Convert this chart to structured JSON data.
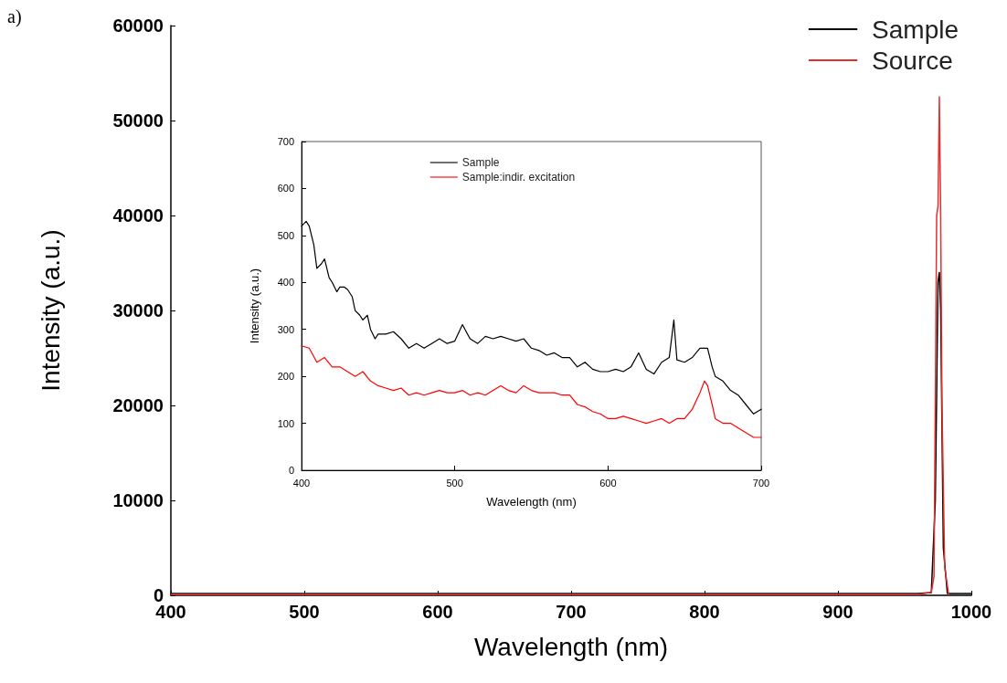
{
  "chart_data": [
    {
      "type": "line",
      "xlabel": "Wavelength (nm)",
      "ylabel": "Intensity (a.u.)",
      "annotations": [
        "a)"
      ],
      "xlim": [
        400,
        1000
      ],
      "xticks": [
        400,
        500,
        600,
        700,
        800,
        900,
        1000
      ],
      "ylim": [
        0,
        60000
      ],
      "yticks": [
        0,
        10000,
        20000,
        30000,
        40000,
        50000,
        60000
      ],
      "grid": false,
      "legend": "top right",
      "marker": "none",
      "line_style": "solid",
      "series": [
        {
          "name": "Sample",
          "color": "#000000",
          "x": [
            400,
            900,
            960,
            970,
            973,
            975,
            976,
            977,
            979,
            982,
            1000
          ],
          "values": [
            200,
            200,
            200,
            300,
            10000,
            33000,
            34000,
            30000,
            5000,
            200,
            200
          ]
        },
        {
          "name": "Source",
          "color": "#e03030",
          "x": [
            400,
            960,
            970,
            972,
            974,
            975,
            976,
            977,
            978,
            980,
            983
          ],
          "values": [
            100,
            100,
            300,
            2000,
            40000,
            41000,
            52500,
            40000,
            20000,
            3000,
            100
          ]
        }
      ]
    },
    {
      "type": "line",
      "xlabel": "Wavelength (nm)",
      "ylabel": "Intensity (a.u.)",
      "xlim": [
        400,
        700
      ],
      "xticks": [
        400,
        500,
        600,
        700
      ],
      "ylim": [
        0,
        700
      ],
      "yticks": [
        0,
        100,
        200,
        300,
        400,
        500,
        600,
        700
      ],
      "grid": false,
      "legend": "top",
      "marker": "none",
      "line_style": "solid",
      "series": [
        {
          "name": "Sample",
          "color": "#000000",
          "x": [
            400,
            403,
            405,
            408,
            410,
            413,
            415,
            418,
            420,
            423,
            425,
            428,
            430,
            433,
            435,
            438,
            440,
            443,
            445,
            448,
            450,
            455,
            460,
            465,
            470,
            475,
            480,
            485,
            490,
            495,
            500,
            505,
            510,
            515,
            520,
            525,
            530,
            535,
            540,
            545,
            550,
            555,
            560,
            565,
            570,
            575,
            580,
            585,
            590,
            595,
            600,
            605,
            610,
            615,
            620,
            625,
            630,
            635,
            640,
            643,
            645,
            650,
            655,
            660,
            663,
            665,
            668,
            670,
            675,
            680,
            685,
            690,
            695,
            700
          ],
          "values": [
            520,
            530,
            520,
            480,
            430,
            440,
            450,
            410,
            400,
            380,
            390,
            390,
            385,
            370,
            340,
            330,
            320,
            330,
            300,
            280,
            290,
            290,
            295,
            280,
            260,
            270,
            260,
            270,
            280,
            270,
            275,
            310,
            280,
            270,
            285,
            280,
            285,
            280,
            275,
            280,
            260,
            255,
            245,
            250,
            240,
            240,
            220,
            230,
            215,
            210,
            210,
            215,
            210,
            220,
            250,
            215,
            205,
            230,
            240,
            320,
            235,
            230,
            240,
            260,
            260,
            260,
            220,
            200,
            190,
            170,
            160,
            140,
            120,
            130
          ]
        },
        {
          "name": "Sample:indir. excitation",
          "color": "#ff0000",
          "x": [
            400,
            405,
            410,
            415,
            420,
            425,
            430,
            435,
            440,
            445,
            450,
            455,
            460,
            465,
            470,
            475,
            480,
            485,
            490,
            495,
            500,
            505,
            510,
            515,
            520,
            525,
            530,
            535,
            540,
            545,
            550,
            555,
            560,
            565,
            570,
            575,
            580,
            585,
            590,
            595,
            600,
            605,
            610,
            615,
            620,
            625,
            630,
            635,
            640,
            645,
            650,
            655,
            660,
            663,
            665,
            668,
            670,
            675,
            680,
            685,
            690,
            695,
            700
          ],
          "values": [
            265,
            260,
            230,
            240,
            220,
            220,
            210,
            200,
            210,
            190,
            180,
            175,
            170,
            175,
            160,
            165,
            160,
            165,
            170,
            165,
            165,
            170,
            160,
            165,
            160,
            170,
            180,
            170,
            165,
            180,
            170,
            165,
            165,
            165,
            160,
            160,
            140,
            135,
            125,
            120,
            110,
            110,
            115,
            110,
            105,
            100,
            105,
            110,
            100,
            110,
            110,
            130,
            165,
            190,
            180,
            140,
            110,
            100,
            100,
            90,
            80,
            70,
            70
          ]
        }
      ]
    }
  ]
}
